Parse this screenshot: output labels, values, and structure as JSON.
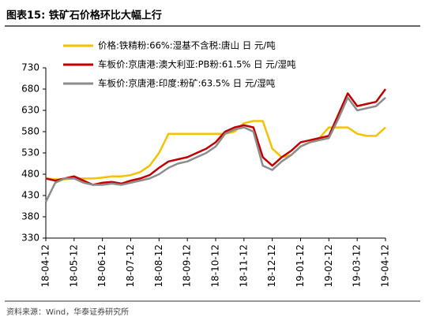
{
  "chart_data": {
    "type": "line",
    "title": "图表15:  铁矿石价格环比大幅上行",
    "source": "资料来源：Wind，华泰证券研究所",
    "categories": [
      "18-04-12",
      null,
      null,
      "18-05-12",
      null,
      null,
      "18-06-12",
      null,
      null,
      "18-07-12",
      null,
      null,
      "18-08-12",
      null,
      null,
      "18-09-12",
      null,
      null,
      "18-10-12",
      null,
      null,
      "18-11-12",
      null,
      null,
      "18-12-12",
      null,
      null,
      "19-01-12",
      null,
      null,
      "19-02-12",
      null,
      null,
      "19-03-12",
      null,
      null,
      "19-04-12"
    ],
    "series": [
      {
        "name": "价格:铁精粉:66%:湿基不含税:唐山 日 元/吨",
        "color": "#f5c200",
        "values": [
          470,
          468,
          468,
          470,
          470,
          470,
          472,
          475,
          475,
          478,
          485,
          500,
          530,
          575,
          575,
          575,
          575,
          575,
          575,
          575,
          580,
          600,
          605,
          605,
          540,
          520,
          525,
          545,
          555,
          565,
          590,
          590,
          590,
          575,
          570,
          570,
          590
        ]
      },
      {
        "name": "车板价:京唐港:澳大利亚:PB粉:61.5% 日 元/湿吨",
        "color": "#c00000",
        "values": [
          470,
          465,
          470,
          475,
          465,
          455,
          460,
          462,
          458,
          465,
          470,
          478,
          495,
          510,
          515,
          520,
          530,
          540,
          555,
          580,
          590,
          595,
          590,
          520,
          500,
          520,
          535,
          555,
          560,
          565,
          570,
          620,
          670,
          640,
          645,
          650,
          680
        ]
      },
      {
        "name": "车板价:京唐港:印度:粉矿:63.5% 日 元/湿吨",
        "color": "#8c8c8c",
        "values": [
          415,
          460,
          470,
          470,
          460,
          455,
          455,
          458,
          455,
          460,
          465,
          470,
          480,
          495,
          505,
          510,
          520,
          530,
          545,
          575,
          585,
          590,
          580,
          500,
          490,
          510,
          525,
          545,
          555,
          560,
          565,
          610,
          660,
          630,
          635,
          640,
          660
        ]
      }
    ],
    "ylim": [
      330,
      730
    ],
    "yticks": [
      330,
      380,
      430,
      480,
      530,
      580,
      630,
      680,
      730
    ],
    "grid": false
  }
}
